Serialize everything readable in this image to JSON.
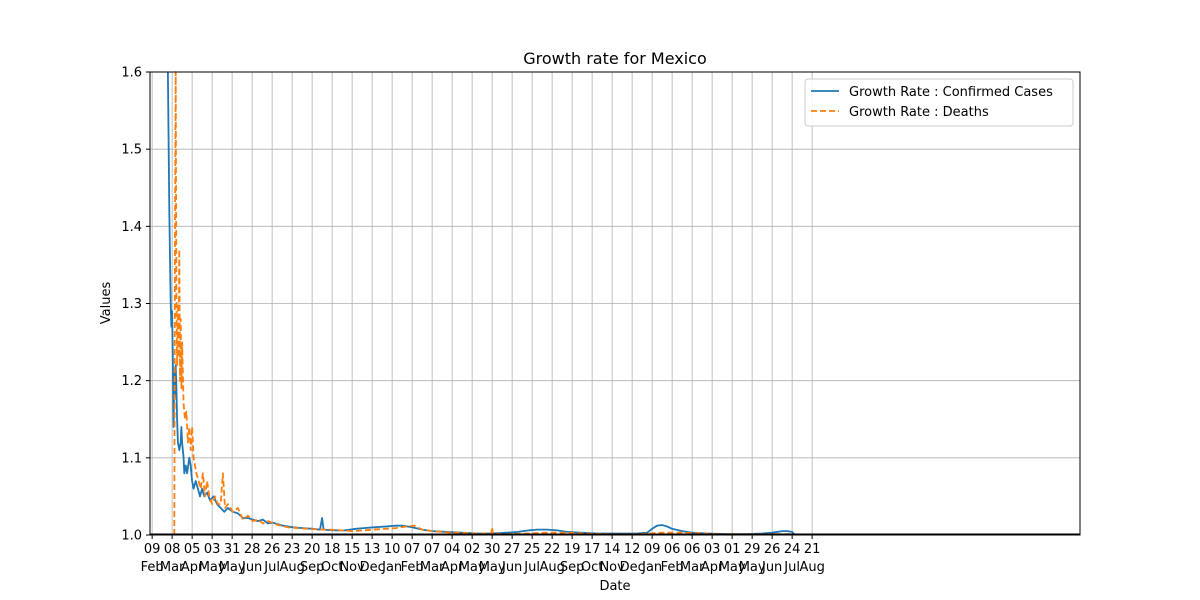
{
  "chart_data": {
    "type": "line",
    "title": "Growth rate for Mexico",
    "xlabel": "Date",
    "ylabel": "Values",
    "ylim": [
      1.0,
      1.6
    ],
    "xlim": [
      "2020-02-06",
      "2023-08-31"
    ],
    "yticks": [
      "1.0",
      "1.1",
      "1.2",
      "1.3",
      "1.4",
      "1.5",
      "1.6"
    ],
    "xticks": [
      {
        "day": "09",
        "month": "Feb",
        "date": "2020-02-09"
      },
      {
        "day": "08",
        "month": "Mar",
        "date": "2020-03-08"
      },
      {
        "day": "05",
        "month": "Apr",
        "date": "2020-04-05"
      },
      {
        "day": "03",
        "month": "May",
        "date": "2020-05-03"
      },
      {
        "day": "31",
        "month": "May",
        "date": "2020-05-31"
      },
      {
        "day": "28",
        "month": "Jun",
        "date": "2020-06-28"
      },
      {
        "day": "26",
        "month": "Jul",
        "date": "2020-07-26"
      },
      {
        "day": "23",
        "month": "Aug",
        "date": "2020-08-23"
      },
      {
        "day": "20",
        "month": "Sep",
        "date": "2020-09-20"
      },
      {
        "day": "18",
        "month": "Oct",
        "date": "2020-10-18"
      },
      {
        "day": "15",
        "month": "Nov",
        "date": "2020-11-15"
      },
      {
        "day": "13",
        "month": "Dec",
        "date": "2020-12-13"
      },
      {
        "day": "10",
        "month": "Jan",
        "date": "2021-01-10"
      },
      {
        "day": "07",
        "month": "Feb",
        "date": "2021-02-07"
      },
      {
        "day": "07",
        "month": "Mar",
        "date": "2021-03-07"
      },
      {
        "day": "04",
        "month": "Apr",
        "date": "2021-04-04"
      },
      {
        "day": "02",
        "month": "May",
        "date": "2021-05-02"
      },
      {
        "day": "30",
        "month": "May",
        "date": "2021-05-30"
      },
      {
        "day": "27",
        "month": "Jun",
        "date": "2021-06-27"
      },
      {
        "day": "25",
        "month": "Jul",
        "date": "2021-07-25"
      },
      {
        "day": "22",
        "month": "Aug",
        "date": "2021-08-22"
      },
      {
        "day": "19",
        "month": "Sep",
        "date": "2021-09-19"
      },
      {
        "day": "17",
        "month": "Oct",
        "date": "2021-10-17"
      },
      {
        "day": "14",
        "month": "Nov",
        "date": "2021-11-14"
      },
      {
        "day": "12",
        "month": "Dec",
        "date": "2021-12-12"
      },
      {
        "day": "09",
        "month": "Jan",
        "date": "2022-01-09"
      },
      {
        "day": "06",
        "month": "Feb",
        "date": "2022-02-06"
      },
      {
        "day": "06",
        "month": "Mar",
        "date": "2022-03-06"
      },
      {
        "day": "03",
        "month": "Apr",
        "date": "2022-04-03"
      },
      {
        "day": "01",
        "month": "May",
        "date": "2022-05-01"
      },
      {
        "day": "29",
        "month": "May",
        "date": "2022-05-29"
      },
      {
        "day": "26",
        "month": "Jun",
        "date": "2022-06-26"
      },
      {
        "day": "24",
        "month": "Jul",
        "date": "2022-07-24"
      },
      {
        "day": "21",
        "month": "Aug",
        "date": "2022-08-21"
      }
    ],
    "grid": true,
    "legend_position": "top-right",
    "series": [
      {
        "name": "Growth Rate : Confirmed Cases",
        "color": "#1f77b4",
        "style": "solid",
        "points": [
          [
            "2020-03-02",
            1.6
          ],
          [
            "2020-03-04",
            1.42
          ],
          [
            "2020-03-06",
            1.3
          ],
          [
            "2020-03-07",
            1.27
          ],
          [
            "2020-03-08",
            1.29
          ],
          [
            "2020-03-09",
            1.22
          ],
          [
            "2020-03-10",
            1.14
          ],
          [
            "2020-03-11",
            1.21
          ],
          [
            "2020-03-12",
            1.18
          ],
          [
            "2020-03-13",
            1.22
          ],
          [
            "2020-03-14",
            1.19
          ],
          [
            "2020-03-15",
            1.15
          ],
          [
            "2020-03-16",
            1.12
          ],
          [
            "2020-03-18",
            1.11
          ],
          [
            "2020-03-20",
            1.12
          ],
          [
            "2020-03-21",
            1.14
          ],
          [
            "2020-03-22",
            1.12
          ],
          [
            "2020-03-24",
            1.1
          ],
          [
            "2020-03-25",
            1.08
          ],
          [
            "2020-03-27",
            1.09
          ],
          [
            "2020-03-29",
            1.08
          ],
          [
            "2020-04-01",
            1.1
          ],
          [
            "2020-04-03",
            1.09
          ],
          [
            "2020-04-05",
            1.07
          ],
          [
            "2020-04-07",
            1.06
          ],
          [
            "2020-04-10",
            1.07
          ],
          [
            "2020-04-13",
            1.06
          ],
          [
            "2020-04-16",
            1.05
          ],
          [
            "2020-04-19",
            1.06
          ],
          [
            "2020-04-22",
            1.05
          ],
          [
            "2020-04-26",
            1.055
          ],
          [
            "2020-04-30",
            1.045
          ],
          [
            "2020-05-05",
            1.05
          ],
          [
            "2020-05-10",
            1.04
          ],
          [
            "2020-05-15",
            1.035
          ],
          [
            "2020-05-20",
            1.03
          ],
          [
            "2020-05-25",
            1.035
          ],
          [
            "2020-06-01",
            1.03
          ],
          [
            "2020-06-08",
            1.028
          ],
          [
            "2020-06-15",
            1.022
          ],
          [
            "2020-06-22",
            1.022
          ],
          [
            "2020-06-29",
            1.02
          ],
          [
            "2020-07-06",
            1.018
          ],
          [
            "2020-07-13",
            1.02
          ],
          [
            "2020-07-20",
            1.015
          ],
          [
            "2020-07-27",
            1.016
          ],
          [
            "2020-08-10",
            1.012
          ],
          [
            "2020-08-24",
            1.01
          ],
          [
            "2020-09-07",
            1.009
          ],
          [
            "2020-09-21",
            1.008
          ],
          [
            "2020-10-01",
            1.007
          ],
          [
            "2020-10-04",
            1.022
          ],
          [
            "2020-10-06",
            1.007
          ],
          [
            "2020-10-20",
            1.006
          ],
          [
            "2020-11-05",
            1.006
          ],
          [
            "2020-11-20",
            1.008
          ],
          [
            "2020-12-01",
            1.009
          ],
          [
            "2020-12-15",
            1.01
          ],
          [
            "2021-01-01",
            1.011
          ],
          [
            "2021-01-15",
            1.012
          ],
          [
            "2021-01-25",
            1.012
          ],
          [
            "2021-02-07",
            1.01
          ],
          [
            "2021-02-21",
            1.007
          ],
          [
            "2021-03-07",
            1.005
          ],
          [
            "2021-03-28",
            1.004
          ],
          [
            "2021-04-18",
            1.003
          ],
          [
            "2021-05-09",
            1.002
          ],
          [
            "2021-05-30",
            1.002
          ],
          [
            "2021-06-20",
            1.003
          ],
          [
            "2021-07-05",
            1.004
          ],
          [
            "2021-07-20",
            1.006
          ],
          [
            "2021-08-01",
            1.007
          ],
          [
            "2021-08-15",
            1.007
          ],
          [
            "2021-08-29",
            1.006
          ],
          [
            "2021-09-12",
            1.004
          ],
          [
            "2021-10-01",
            1.003
          ],
          [
            "2021-10-24",
            1.002
          ],
          [
            "2021-11-21",
            1.002
          ],
          [
            "2021-12-19",
            1.002
          ],
          [
            "2022-01-02",
            1.003
          ],
          [
            "2022-01-09",
            1.008
          ],
          [
            "2022-01-16",
            1.012
          ],
          [
            "2022-01-23",
            1.013
          ],
          [
            "2022-01-30",
            1.011
          ],
          [
            "2022-02-06",
            1.008
          ],
          [
            "2022-02-20",
            1.005
          ],
          [
            "2022-03-06",
            1.003
          ],
          [
            "2022-03-27",
            1.002
          ],
          [
            "2022-04-24",
            1.001
          ],
          [
            "2022-05-22",
            1.001
          ],
          [
            "2022-06-12",
            1.002
          ],
          [
            "2022-06-26",
            1.003
          ],
          [
            "2022-07-10",
            1.005
          ],
          [
            "2022-07-17",
            1.005
          ],
          [
            "2022-07-24",
            1.004
          ],
          [
            "2022-07-27",
            1.001
          ]
        ]
      },
      {
        "name": "Growth Rate : Deaths",
        "color": "#ff7f0e",
        "style": "dashed",
        "points": [
          [
            "2020-03-11",
            1.0
          ],
          [
            "2020-03-12",
            1.4
          ],
          [
            "2020-03-13",
            1.6
          ],
          [
            "2020-03-14",
            1.31
          ],
          [
            "2020-03-15",
            1.22
          ],
          [
            "2020-03-16",
            1.3
          ],
          [
            "2020-03-17",
            1.23
          ],
          [
            "2020-03-18",
            1.37
          ],
          [
            "2020-03-19",
            1.2
          ],
          [
            "2020-03-20",
            1.28
          ],
          [
            "2020-03-21",
            1.19
          ],
          [
            "2020-03-22",
            1.25
          ],
          [
            "2020-03-24",
            1.17
          ],
          [
            "2020-03-26",
            1.15
          ],
          [
            "2020-03-28",
            1.16
          ],
          [
            "2020-03-30",
            1.12
          ],
          [
            "2020-04-01",
            1.14
          ],
          [
            "2020-04-03",
            1.11
          ],
          [
            "2020-04-05",
            1.14
          ],
          [
            "2020-04-07",
            1.1
          ],
          [
            "2020-04-09",
            1.09
          ],
          [
            "2020-04-11",
            1.08
          ],
          [
            "2020-04-14",
            1.07
          ],
          [
            "2020-04-17",
            1.06
          ],
          [
            "2020-04-20",
            1.08
          ],
          [
            "2020-04-23",
            1.05
          ],
          [
            "2020-04-26",
            1.07
          ],
          [
            "2020-04-29",
            1.05
          ],
          [
            "2020-05-03",
            1.04
          ],
          [
            "2020-05-07",
            1.05
          ],
          [
            "2020-05-11",
            1.04
          ],
          [
            "2020-05-15",
            1.04
          ],
          [
            "2020-05-18",
            1.08
          ],
          [
            "2020-05-21",
            1.035
          ],
          [
            "2020-05-25",
            1.04
          ],
          [
            "2020-06-01",
            1.03
          ],
          [
            "2020-06-08",
            1.035
          ],
          [
            "2020-06-15",
            1.02
          ],
          [
            "2020-06-22",
            1.025
          ],
          [
            "2020-06-29",
            1.018
          ],
          [
            "2020-07-06",
            1.02
          ],
          [
            "2020-07-13",
            1.015
          ],
          [
            "2020-07-20",
            1.018
          ],
          [
            "2020-08-03",
            1.013
          ],
          [
            "2020-08-17",
            1.01
          ],
          [
            "2020-08-31",
            1.009
          ],
          [
            "2020-09-14",
            1.008
          ],
          [
            "2020-10-01",
            1.007
          ],
          [
            "2020-10-15",
            1.007
          ],
          [
            "2020-11-01",
            1.006
          ],
          [
            "2020-11-15",
            1.005
          ],
          [
            "2020-12-01",
            1.006
          ],
          [
            "2020-12-15",
            1.007
          ],
          [
            "2021-01-01",
            1.008
          ],
          [
            "2021-01-15",
            1.009
          ],
          [
            "2021-01-30",
            1.011
          ],
          [
            "2021-02-10",
            1.012
          ],
          [
            "2021-02-21",
            1.007
          ],
          [
            "2021-03-07",
            1.005
          ],
          [
            "2021-03-21",
            1.004
          ],
          [
            "2021-04-04",
            1.003
          ],
          [
            "2021-04-18",
            1.003
          ],
          [
            "2021-05-02",
            1.002
          ],
          [
            "2021-05-16",
            1.002
          ],
          [
            "2021-05-29",
            1.002
          ],
          [
            "2021-05-30",
            1.01
          ],
          [
            "2021-05-31",
            1.002
          ],
          [
            "2021-06-20",
            1.001
          ],
          [
            "2021-07-18",
            1.002
          ],
          [
            "2021-08-15",
            1.003
          ],
          [
            "2021-09-12",
            1.003
          ],
          [
            "2021-10-10",
            1.002
          ],
          [
            "2021-11-14",
            1.001
          ],
          [
            "2021-12-19",
            1.001
          ],
          [
            "2022-01-23",
            1.003
          ],
          [
            "2022-02-20",
            1.003
          ],
          [
            "2022-03-20",
            1.002
          ],
          [
            "2022-04-17",
            1.001
          ],
          [
            "2022-05-22",
            1.001
          ],
          [
            "2022-06-26",
            1.001
          ],
          [
            "2022-07-24",
            1.001
          ]
        ]
      }
    ]
  }
}
